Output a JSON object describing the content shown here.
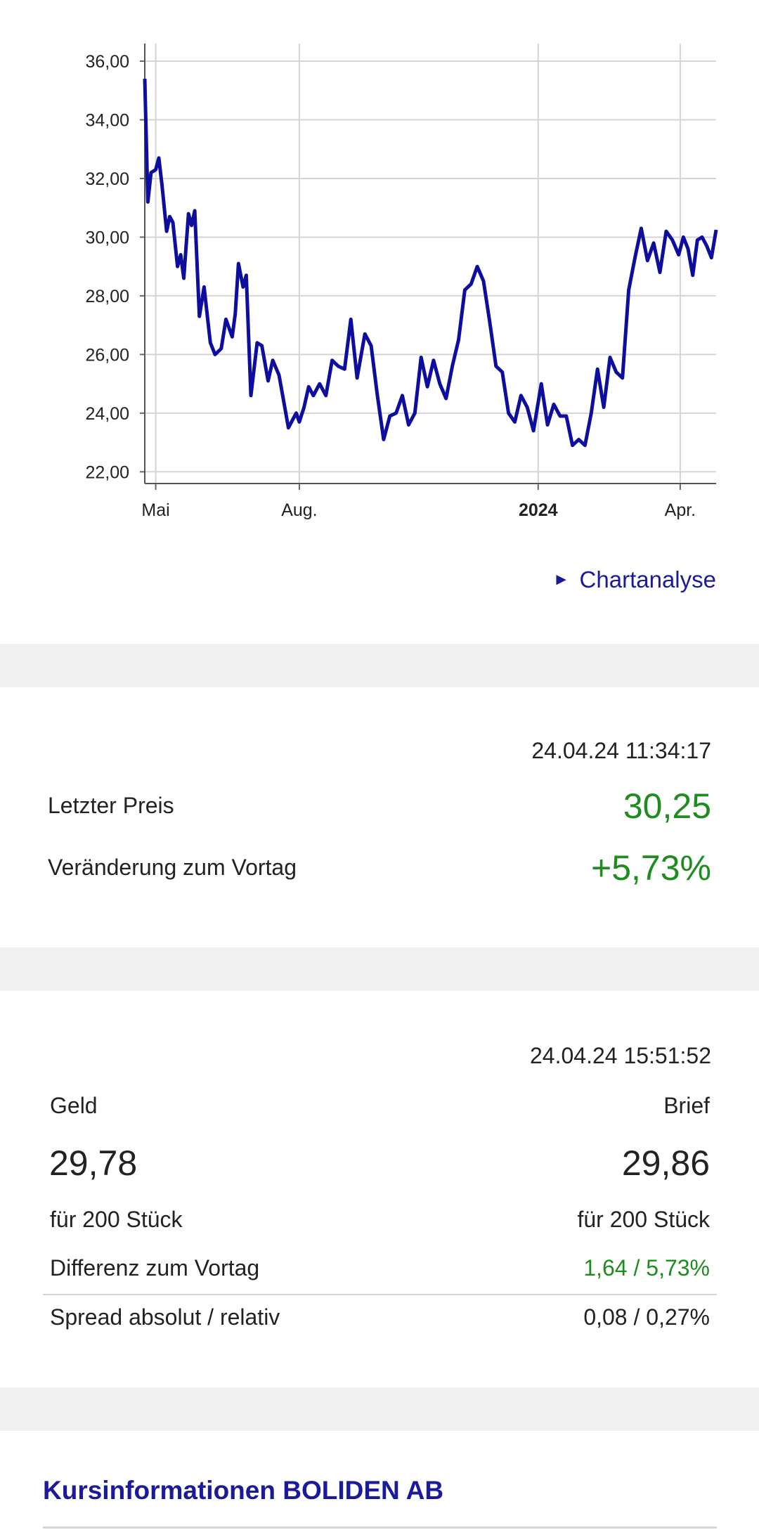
{
  "chart_data": {
    "type": "line",
    "title": "",
    "xlabel": "",
    "ylabel": "",
    "ylim": [
      21.6,
      36.6
    ],
    "yticks": [
      "36,00",
      "34,00",
      "32,00",
      "30,00",
      "28,00",
      "26,00",
      "24,00",
      "22,00"
    ],
    "ytick_values": [
      36,
      34,
      32,
      30,
      28,
      26,
      24,
      22
    ],
    "xticks": [
      "Mai",
      "Aug.",
      "2024",
      "Apr."
    ],
    "xtick_dates": [
      "2023-05-01",
      "2023-08-01",
      "2024-01-01",
      "2024-04-01"
    ],
    "x_range": [
      "2023-04-24",
      "2024-04-24"
    ],
    "grid": true,
    "line_color": "#0d0d9e",
    "series": [
      {
        "x": [
          "2023-04-24",
          "2023-04-26",
          "2023-04-28",
          "2023-05-01",
          "2023-05-03",
          "2023-05-05",
          "2023-05-08",
          "2023-05-10",
          "2023-05-12",
          "2023-05-15",
          "2023-05-17",
          "2023-05-19",
          "2023-05-22",
          "2023-05-24",
          "2023-05-26",
          "2023-05-29",
          "2023-06-01",
          "2023-06-05",
          "2023-06-08",
          "2023-06-12",
          "2023-06-15",
          "2023-06-19",
          "2023-06-21",
          "2023-06-23",
          "2023-06-26",
          "2023-06-28",
          "2023-07-01",
          "2023-07-05",
          "2023-07-08",
          "2023-07-12",
          "2023-07-15",
          "2023-07-19",
          "2023-07-22",
          "2023-07-25",
          "2023-07-28",
          "2023-07-30",
          "2023-08-01",
          "2023-08-04",
          "2023-08-07",
          "2023-08-10",
          "2023-08-14",
          "2023-08-18",
          "2023-08-22",
          "2023-08-26",
          "2023-08-30",
          "2023-09-03",
          "2023-09-07",
          "2023-09-12",
          "2023-09-16",
          "2023-09-20",
          "2023-09-24",
          "2023-09-28",
          "2023-10-02",
          "2023-10-06",
          "2023-10-10",
          "2023-10-14",
          "2023-10-18",
          "2023-10-22",
          "2023-10-26",
          "2023-10-30",
          "2023-11-03",
          "2023-11-07",
          "2023-11-11",
          "2023-11-15",
          "2023-11-19",
          "2023-11-23",
          "2023-11-27",
          "2023-12-01",
          "2023-12-05",
          "2023-12-09",
          "2023-12-13",
          "2023-12-17",
          "2023-12-21",
          "2023-12-25",
          "2023-12-29",
          "2024-01-03",
          "2024-01-07",
          "2024-01-11",
          "2024-01-15",
          "2024-01-19",
          "2024-01-23",
          "2024-01-27",
          "2024-01-31",
          "2024-02-04",
          "2024-02-08",
          "2024-02-12",
          "2024-02-16",
          "2024-02-20",
          "2024-02-24",
          "2024-02-28",
          "2024-03-03",
          "2024-03-07",
          "2024-03-11",
          "2024-03-15",
          "2024-03-19",
          "2024-03-23",
          "2024-03-27",
          "2024-03-31",
          "2024-04-03",
          "2024-04-06",
          "2024-04-09",
          "2024-04-12",
          "2024-04-15",
          "2024-04-18",
          "2024-04-21",
          "2024-04-24"
        ],
        "y": [
          35.4,
          31.2,
          32.2,
          32.3,
          32.7,
          31.8,
          30.2,
          30.7,
          30.5,
          29.0,
          29.4,
          28.6,
          30.8,
          30.4,
          30.9,
          27.3,
          28.3,
          26.4,
          26.0,
          26.2,
          27.2,
          26.6,
          27.4,
          29.1,
          28.3,
          28.7,
          24.6,
          26.4,
          26.3,
          25.1,
          25.8,
          25.3,
          24.4,
          23.5,
          23.8,
          24.0,
          23.7,
          24.2,
          24.9,
          24.6,
          25.0,
          24.6,
          25.8,
          25.6,
          25.5,
          27.2,
          25.2,
          26.7,
          26.3,
          24.6,
          23.1,
          23.9,
          24.0,
          24.6,
          23.6,
          24.0,
          25.9,
          24.9,
          25.8,
          25.0,
          24.5,
          25.6,
          26.5,
          28.2,
          28.4,
          29.0,
          28.5,
          27.1,
          25.6,
          25.4,
          24.0,
          23.7,
          24.6,
          24.2,
          23.4,
          25.0,
          23.6,
          24.3,
          23.9,
          23.9,
          22.9,
          23.1,
          22.9,
          24.0,
          25.5,
          24.2,
          25.9,
          25.4,
          25.2,
          28.2,
          29.3,
          30.3,
          29.2,
          29.8,
          28.8,
          30.2,
          29.9,
          29.4,
          30.0,
          29.6,
          28.7,
          29.9,
          30.0,
          29.7,
          29.3,
          30.25
        ]
      }
    ]
  },
  "chart_link": {
    "label": "Chartanalyse",
    "icon": "triangle-right-icon"
  },
  "last_price": {
    "timestamp": "24.04.24 11:34:17",
    "price_label": "Letzter Preis",
    "price_value": "30,25",
    "change_label": "Veränderung zum Vortag",
    "change_value": "+5,73%"
  },
  "quote": {
    "timestamp": "24.04.24 15:51:52",
    "bid_label": "Geld",
    "ask_label": "Brief",
    "bid_value": "29,78",
    "ask_value": "29,86",
    "bid_size": "für 200 Stück",
    "ask_size": "für 200 Stück",
    "diff_label": "Differenz zum Vortag",
    "diff_value": "1,64 / 5,73%",
    "spread_label": "Spread absolut / relativ",
    "spread_value": "0,08 / 0,27%"
  },
  "section_heading": "Kursinformationen BOLIDEN AB",
  "colors": {
    "accent": "#1a1a9a",
    "positive": "#1e8c1e",
    "separator": "#f0f0f0"
  }
}
